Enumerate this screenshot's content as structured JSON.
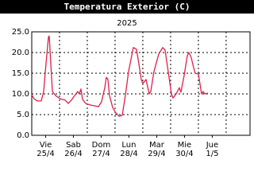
{
  "chart_data": {
    "type": "line",
    "title": "Temperatura Exterior (C)",
    "subtitle": "2025",
    "x": [
      0,
      0.086,
      0.2,
      0.343,
      0.429,
      0.514,
      0.6,
      0.629,
      0.686,
      0.743,
      0.857,
      1.029,
      1.2,
      1.314,
      1.429,
      1.543,
      1.657,
      1.714,
      1.771,
      1.829,
      1.943,
      2.114,
      2.286,
      2.4,
      2.514,
      2.629,
      2.686,
      2.743,
      2.8,
      2.914,
      3.029,
      3.143,
      3.257,
      3.371,
      3.486,
      3.657,
      3.771,
      3.857,
      3.943,
      4.0,
      4.114,
      4.229,
      4.286,
      4.4,
      4.571,
      4.714,
      4.8,
      4.914,
      5.029,
      5.086,
      5.2,
      5.314,
      5.371,
      5.486,
      5.6,
      5.657,
      5.743,
      5.829,
      5.886,
      6.0,
      6.057,
      6.114,
      6.171,
      6.229,
      6.343
    ],
    "series": [
      {
        "color": "#e0204a",
        "values": [
          9.8,
          8.8,
          8.3,
          8.3,
          10.6,
          17.3,
          23.7,
          24.0,
          17.3,
          10.6,
          9.6,
          8.8,
          8.5,
          7.7,
          8.5,
          9.6,
          10.6,
          10.0,
          11.2,
          8.7,
          7.7,
          7.3,
          7.1,
          6.9,
          8.1,
          11.5,
          14.0,
          13.5,
          9.6,
          6.7,
          5.4,
          4.6,
          4.8,
          9.6,
          15.4,
          21.2,
          20.8,
          17.3,
          13.5,
          12.5,
          13.5,
          10.0,
          10.6,
          15.4,
          19.6,
          21.2,
          20.6,
          15.4,
          10.0,
          9.0,
          10.0,
          11.5,
          10.4,
          14.4,
          19.2,
          20.0,
          18.8,
          16.3,
          15.0,
          14.8,
          12.5,
          10.0,
          10.6,
          10.0,
          10.2
        ]
      }
    ],
    "xlim": [
      0,
      7.86
    ],
    "xticks": [
      {
        "value": 0.5,
        "label": [
          "Vie",
          "25/4"
        ]
      },
      {
        "value": 1.5,
        "label": [
          "Sab",
          "26/4"
        ]
      },
      {
        "value": 2.5,
        "label": [
          "Dom",
          "27/4"
        ]
      },
      {
        "value": 3.5,
        "label": [
          "Lun",
          "28/4"
        ]
      },
      {
        "value": 4.5,
        "label": [
          "Mar",
          "29/4"
        ]
      },
      {
        "value": 5.5,
        "label": [
          "Mie",
          "30/4"
        ]
      },
      {
        "value": 6.5,
        "label": [
          "Jue",
          "1/5"
        ]
      }
    ],
    "xgrid": [
      1,
      2,
      3,
      4,
      5,
      6,
      7
    ],
    "ylim": [
      0,
      25
    ],
    "yticks": [
      {
        "value": 0,
        "label": "0.0"
      },
      {
        "value": 5,
        "label": "5.0"
      },
      {
        "value": 10,
        "label": "10.0"
      },
      {
        "value": 15,
        "label": "15.0"
      },
      {
        "value": 20,
        "label": "20.0"
      },
      {
        "value": 25,
        "label": "25.0"
      }
    ],
    "grid": true
  }
}
